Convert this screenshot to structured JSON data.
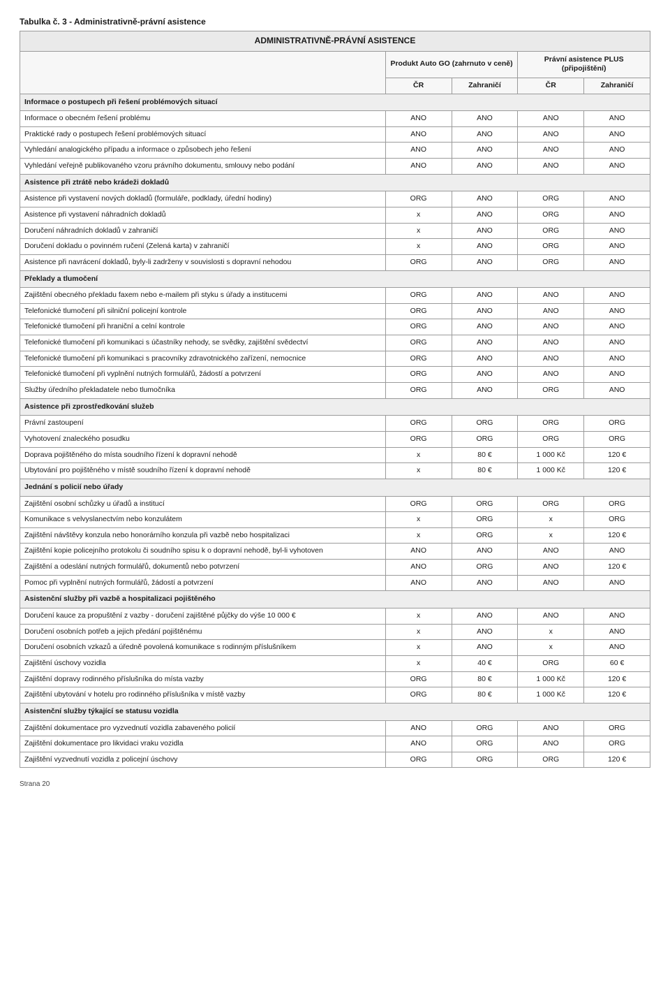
{
  "caption": "Tabulka č. 3 - Administrativně-právní asistence",
  "titleRow": "ADMINISTRATIVNĚ-PRÁVNÍ ASISTENCE",
  "groupHeaders": {
    "left": "Produkt Auto GO (zahrnuto v ceně)",
    "right": "Právní asistence PLUS (připojištění)"
  },
  "subHeaders": [
    "ČR",
    "Zahraničí",
    "ČR",
    "Zahraničí"
  ],
  "footer": "Strana 20",
  "colors": {
    "sectionBg": "#eeeeee",
    "titleBg": "#eaeaea",
    "headBg": "#f7f7f7",
    "border": "#9a9a9a"
  },
  "rows": [
    {
      "type": "section",
      "label": "Informace o postupech při řešení problémových situací"
    },
    {
      "type": "data",
      "label": "Informace o obecném řešení problému",
      "v": [
        "ANO",
        "ANO",
        "ANO",
        "ANO"
      ]
    },
    {
      "type": "data",
      "label": "Praktické rady o postupech řešení problémových situací",
      "v": [
        "ANO",
        "ANO",
        "ANO",
        "ANO"
      ]
    },
    {
      "type": "data",
      "label": "Vyhledání analogického případu a informace o způsobech jeho řešení",
      "v": [
        "ANO",
        "ANO",
        "ANO",
        "ANO"
      ]
    },
    {
      "type": "data",
      "label": "Vyhledání veřejně publikovaného vzoru právního dokumentu, smlouvy nebo podání",
      "v": [
        "ANO",
        "ANO",
        "ANO",
        "ANO"
      ]
    },
    {
      "type": "section",
      "label": "Asistence při ztrátě nebo krádeži dokladů"
    },
    {
      "type": "data",
      "label": "Asistence při vystavení nových dokladů (formuláře, podklady, úřední hodiny)",
      "v": [
        "ORG",
        "ANO",
        "ORG",
        "ANO"
      ]
    },
    {
      "type": "data",
      "label": "Asistence při vystavení náhradních dokladů",
      "v": [
        "x",
        "ANO",
        "ORG",
        "ANO"
      ]
    },
    {
      "type": "data",
      "label": "Doručení náhradních dokladů v zahraničí",
      "v": [
        "x",
        "ANO",
        "ORG",
        "ANO"
      ]
    },
    {
      "type": "data",
      "label": "Doručení dokladu o povinném ručení (Zelená karta) v zahraničí",
      "v": [
        "x",
        "ANO",
        "ORG",
        "ANO"
      ]
    },
    {
      "type": "data",
      "label": "Asistence při navrácení dokladů, byly-li zadrženy v souvislosti s dopravní nehodou",
      "v": [
        "ORG",
        "ANO",
        "ORG",
        "ANO"
      ]
    },
    {
      "type": "section",
      "label": "Překlady a tlumočení"
    },
    {
      "type": "data",
      "label": "Zajištění obecného překladu faxem nebo e-mailem při styku s úřady a institucemi",
      "v": [
        "ORG",
        "ANO",
        "ANO",
        "ANO"
      ]
    },
    {
      "type": "data",
      "label": "Telefonické tlumočení při silniční policejní kontrole",
      "v": [
        "ORG",
        "ANO",
        "ANO",
        "ANO"
      ]
    },
    {
      "type": "data",
      "label": "Telefonické tlumočení při hraniční a celní kontrole",
      "v": [
        "ORG",
        "ANO",
        "ANO",
        "ANO"
      ]
    },
    {
      "type": "data",
      "label": "Telefonické tlumočení při komunikaci s účastníky nehody, se svědky, zajištění svědectví",
      "v": [
        "ORG",
        "ANO",
        "ANO",
        "ANO"
      ]
    },
    {
      "type": "data",
      "label": "Telefonické tlumočení při komunikaci s pracovníky zdravotnického zařízení, nemocnice",
      "v": [
        "ORG",
        "ANO",
        "ANO",
        "ANO"
      ]
    },
    {
      "type": "data",
      "label": "Telefonické tlumočení při vyplnění nutných formulářů, žádostí a potvrzení",
      "v": [
        "ORG",
        "ANO",
        "ANO",
        "ANO"
      ]
    },
    {
      "type": "data",
      "label": "Služby úředního překladatele nebo tlumočníka",
      "v": [
        "ORG",
        "ANO",
        "ORG",
        "ANO"
      ]
    },
    {
      "type": "section",
      "label": "Asistence při zprostředkování služeb"
    },
    {
      "type": "data",
      "label": "Právní zastoupení",
      "v": [
        "ORG",
        "ORG",
        "ORG",
        "ORG"
      ]
    },
    {
      "type": "data",
      "label": "Vyhotovení znaleckého posudku",
      "v": [
        "ORG",
        "ORG",
        "ORG",
        "ORG"
      ]
    },
    {
      "type": "data",
      "label": "Doprava pojištěného do místa soudního řízení k dopravní nehodě",
      "v": [
        "x",
        "80 €",
        "1 000 Kč",
        "120 €"
      ]
    },
    {
      "type": "data",
      "label": "Ubytování pro pojištěného v místě soudního řízení k dopravní nehodě",
      "v": [
        "x",
        "80 €",
        "1 000 Kč",
        "120 €"
      ]
    },
    {
      "type": "section",
      "label": "Jednání s policií nebo úřady"
    },
    {
      "type": "data",
      "label": "Zajištění osobní schůzky u úřadů a institucí",
      "v": [
        "ORG",
        "ORG",
        "ORG",
        "ORG"
      ]
    },
    {
      "type": "data",
      "label": "Komunikace s velvyslanectvím nebo konzulátem",
      "v": [
        "x",
        "ORG",
        "x",
        "ORG"
      ]
    },
    {
      "type": "data",
      "label": "Zajištění návštěvy konzula nebo honorárního konzula při vazbě nebo hospitalizaci",
      "v": [
        "x",
        "ORG",
        "x",
        "120 €"
      ]
    },
    {
      "type": "data",
      "label": "Zajištění kopie policejního protokolu či soudního spisu k o dopravní nehodě, byl-li vyhotoven",
      "v": [
        "ANO",
        "ANO",
        "ANO",
        "ANO"
      ]
    },
    {
      "type": "data",
      "label": "Zajištění a odeslání nutných formulářů, dokumentů nebo potvrzení",
      "v": [
        "ANO",
        "ORG",
        "ANO",
        "120 €"
      ]
    },
    {
      "type": "data",
      "label": "Pomoc při vyplnění nutných formulářů, žádostí a potvrzení",
      "v": [
        "ANO",
        "ANO",
        "ANO",
        "ANO"
      ]
    },
    {
      "type": "section",
      "label": "Asistenční služby při vazbě a hospitalizaci pojištěného"
    },
    {
      "type": "data",
      "label": "Doručení kauce za propuštění z vazby - doručení zajištěné půjčky do výše 10 000 €",
      "v": [
        "x",
        "ANO",
        "ANO",
        "ANO"
      ]
    },
    {
      "type": "data",
      "label": "Doručení osobních potřeb a jejich předání pojištěnému",
      "v": [
        "x",
        "ANO",
        "x",
        "ANO"
      ]
    },
    {
      "type": "data",
      "label": "Doručení osobních vzkazů a úředně povolená komunikace s rodinným příslušníkem",
      "v": [
        "x",
        "ANO",
        "x",
        "ANO"
      ]
    },
    {
      "type": "data",
      "label": "Zajištění úschovy vozidla",
      "v": [
        "x",
        "40 €",
        "ORG",
        "60 €"
      ]
    },
    {
      "type": "data",
      "label": "Zajištění dopravy rodinného příslušníka do místa vazby",
      "v": [
        "ORG",
        "80 €",
        "1 000 Kč",
        "120 €"
      ]
    },
    {
      "type": "data",
      "label": "Zajištění ubytování v hotelu pro rodinného příslušníka v místě vazby",
      "v": [
        "ORG",
        "80 €",
        "1 000 Kč",
        "120 €"
      ]
    },
    {
      "type": "section",
      "label": "Asistenční služby týkající se statusu vozidla"
    },
    {
      "type": "data",
      "label": "Zajištění dokumentace pro vyzvednutí vozidla zabaveného policií",
      "v": [
        "ANO",
        "ORG",
        "ANO",
        "ORG"
      ]
    },
    {
      "type": "data",
      "label": "Zajištění dokumentace pro likvidaci vraku vozidla",
      "v": [
        "ANO",
        "ORG",
        "ANO",
        "ORG"
      ]
    },
    {
      "type": "data",
      "label": "Zajištění vyzvednutí vozidla z policejní úschovy",
      "v": [
        "ORG",
        "ORG",
        "ORG",
        "120 €"
      ]
    }
  ]
}
